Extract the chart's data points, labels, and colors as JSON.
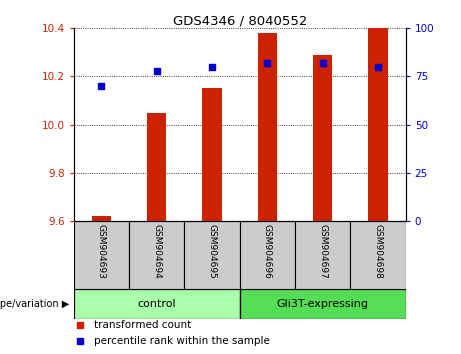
{
  "title": "GDS4346 / 8040552",
  "samples": [
    "GSM904693",
    "GSM904694",
    "GSM904695",
    "GSM904696",
    "GSM904697",
    "GSM904698"
  ],
  "red_values": [
    9.62,
    10.05,
    10.15,
    10.38,
    10.29,
    10.4
  ],
  "blue_pct": [
    70,
    78,
    80,
    82,
    82,
    80
  ],
  "ylim_left": [
    9.6,
    10.4
  ],
  "ylim_right": [
    0,
    100
  ],
  "yticks_left": [
    9.6,
    9.8,
    10.0,
    10.2,
    10.4
  ],
  "yticks_right": [
    0,
    25,
    50,
    75,
    100
  ],
  "groups": [
    {
      "label": "control",
      "samples": [
        0,
        1,
        2
      ],
      "color": "#aaffaa"
    },
    {
      "label": "Gli3T-expressing",
      "samples": [
        3,
        4,
        5
      ],
      "color": "#55dd55"
    }
  ],
  "bar_bottom": 9.6,
  "bar_color": "#cc2200",
  "dot_color": "#0000cc",
  "legend_red": "transformed count",
  "legend_blue": "percentile rank within the sample",
  "group_label": "genotype/variation",
  "tick_color_left": "#cc2200",
  "tick_color_right": "#0000cc",
  "sample_bg": "#cccccc",
  "bar_width": 0.35
}
